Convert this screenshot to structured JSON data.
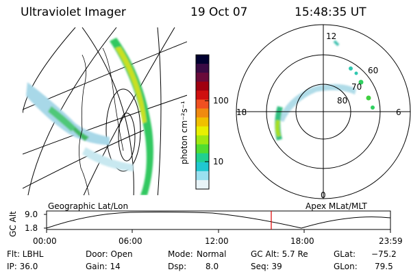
{
  "header": {
    "title": "Ultraviolet Imager",
    "date": "19 Oct 07",
    "time": "15:48:35 UT"
  },
  "colorbar": {
    "unit_label": "photon cm⁻²s⁻¹",
    "ticks": [
      "100",
      "10"
    ],
    "colors": [
      "#000030",
      "#3a0a44",
      "#6a0a3a",
      "#a00010",
      "#d01010",
      "#f05020",
      "#f08a10",
      "#f0c000",
      "#e8f000",
      "#a0e810",
      "#50dd30",
      "#20d090",
      "#20c8d0",
      "#9ae0f0",
      "#e8f4f8"
    ]
  },
  "polar": {
    "labels": {
      "top": "12",
      "left": "18",
      "right": "6",
      "bottom": "0"
    },
    "rings": [
      "60",
      "70",
      "80"
    ]
  },
  "timeline": {
    "left_label": "Geographic Lat/Lon",
    "right_label": "Apex MLat/MLT",
    "y_axis_label": "GC Alt",
    "y_ticks": [
      "9.0",
      "1.8"
    ],
    "x_ticks": [
      "00:00",
      "06:00",
      "12:00",
      "18:00",
      "23:59"
    ],
    "marker_color": "#e00000"
  },
  "footer": {
    "filter": "Flt: LBHL",
    "door": "Door: Open",
    "mode_label": "Mode:",
    "mode_value": "Normal",
    "gc_alt": "GC Alt: 5.7 Re",
    "glat_label": "GLat:",
    "glat_value": "−75.2",
    "ip": "IP: 36.0",
    "gain": "Gain: 14",
    "dsp_label": "Dsp:",
    "dsp_value": "8.0",
    "seq": "Seq: 39",
    "glon_label": "GLon:",
    "glon_value": "79.5"
  }
}
